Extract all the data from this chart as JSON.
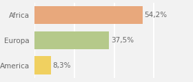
{
  "categories": [
    "Africa",
    "Europa",
    "America"
  ],
  "values": [
    54.2,
    37.5,
    8.3
  ],
  "labels": [
    "54,2%",
    "37,5%",
    "8,3%"
  ],
  "bar_colors": [
    "#e8a87c",
    "#b5c98a",
    "#f0d060"
  ],
  "background_color": "#f2f2f2",
  "xlim": [
    0,
    68
  ],
  "bar_height": 0.72,
  "label_fontsize": 7.5,
  "tick_fontsize": 7.5,
  "grid_color": "#ffffff",
  "text_color": "#666666"
}
